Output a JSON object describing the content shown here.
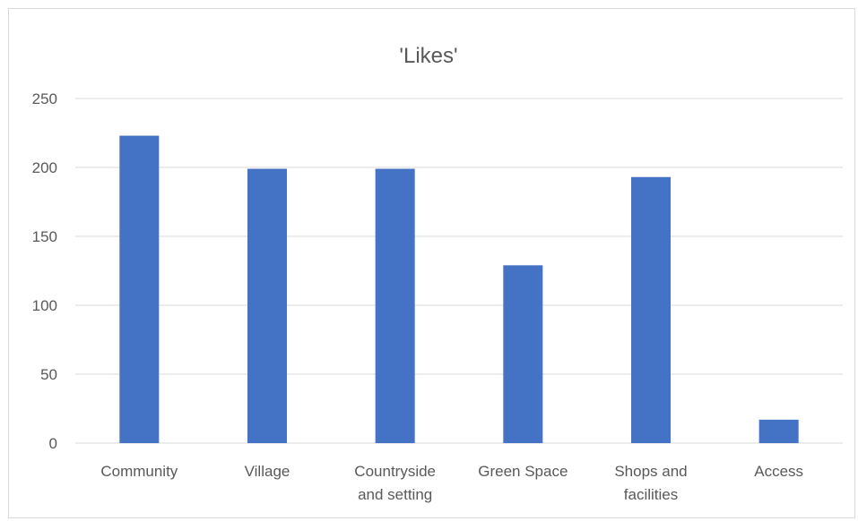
{
  "chart_data": {
    "type": "bar",
    "title": "'Likes'",
    "xlabel": "",
    "ylabel": "",
    "categories": [
      "Community",
      "Village",
      "Countryside and setting",
      "Green Space",
      "Shops and facilities",
      "Access"
    ],
    "values": [
      223,
      199,
      199,
      129,
      193,
      17
    ],
    "ylim": [
      0,
      250
    ],
    "yticks": [
      0,
      50,
      100,
      150,
      200,
      250
    ],
    "grid": true,
    "legend": "none",
    "bar_color": "#4472C4",
    "grid_color": "#d9d9d9",
    "text_color": "#595959"
  }
}
